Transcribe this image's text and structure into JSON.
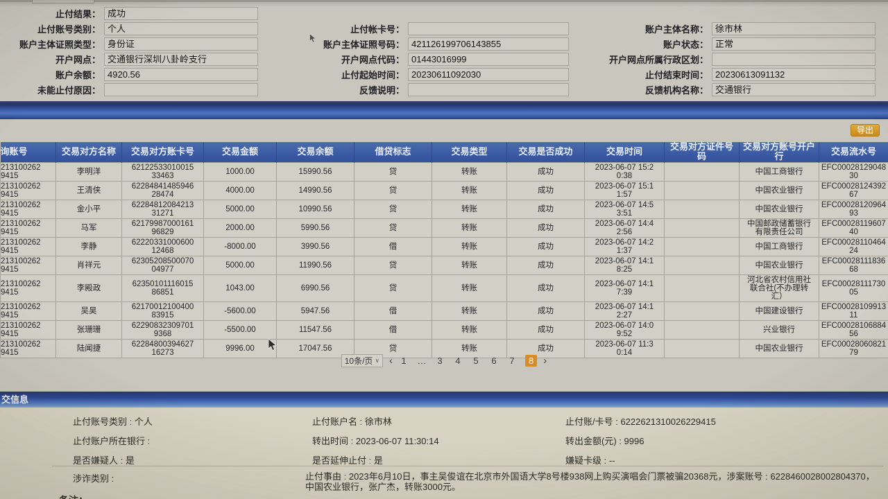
{
  "colors": {
    "accent_orange": "#d78c28",
    "header_blue": "#3b5ba5",
    "bar_blue_dark": "#27346f",
    "panel_bg": "#d7d2c2"
  },
  "form": {
    "stop_result": {
      "label": "止付结果：",
      "value": "成功"
    },
    "stop_acct_type": {
      "label": "止付账号类别：",
      "value": "个人"
    },
    "stop_card_no": {
      "label": "止付帐卡号：",
      "value": ""
    },
    "subject_name": {
      "label": "账户主体名称：",
      "value": "徐市林"
    },
    "cert_type": {
      "label": "账户主体证照类型：",
      "value": "身份证"
    },
    "cert_no": {
      "label": "账户主体证照号码：",
      "value": "421126199706143855"
    },
    "acct_status": {
      "label": "账户状态：",
      "value": "正常"
    },
    "branch": {
      "label": "开户网点：",
      "value": "交通银行深圳八卦岭支行"
    },
    "branch_code": {
      "label": "开户网点代码：",
      "value": "01443016999"
    },
    "branch_region": {
      "label": "开户网点所属行政区划：",
      "value": ""
    },
    "balance": {
      "label": "账户余额：",
      "value": "4920.56"
    },
    "start_time": {
      "label": "止付起始时间：",
      "value": "20230611092030"
    },
    "end_time": {
      "label": "止付结束时间：",
      "value": "20230613091132"
    },
    "fail_reason": {
      "label": "未能止付原因：",
      "value": ""
    },
    "feedback_note": {
      "label": "反馈说明：",
      "value": ""
    },
    "feedback_org": {
      "label": "反馈机构名称：",
      "value": "交通银行"
    }
  },
  "toolbar": {
    "export_label": "导出"
  },
  "table": {
    "headers": [
      "询账号",
      "交易对方名称",
      "交易对方账卡号",
      "交易金额",
      "交易余额",
      "借贷标志",
      "交易类型",
      "交易是否成功",
      "交易时间",
      "交易对方证件号码",
      "交易对方账号开户\n行",
      "交易流水号"
    ],
    "rows": [
      {
        "account": "213100262\n9415",
        "name": "李明洋",
        "card": "62122533010015\n33463",
        "amount": "1000.00",
        "balance": "15990.56",
        "flag": "贷",
        "type": "转账",
        "success": "成功",
        "time": "2023-06-07 15:2\n0:38",
        "cert": "",
        "bank": "中国工商银行",
        "serial": "EFC00028129048\n30"
      },
      {
        "account": "213100262\n9415",
        "name": "王清侠",
        "card": "62284841485946\n28474",
        "amount": "4000.00",
        "balance": "14990.56",
        "flag": "贷",
        "type": "转账",
        "success": "成功",
        "time": "2023-06-07 15:1\n1:57",
        "cert": "",
        "bank": "中国农业银行",
        "serial": "EFC00028124392\n67"
      },
      {
        "account": "213100262\n9415",
        "name": "金小平",
        "card": "62284812084213\n31271",
        "amount": "5000.00",
        "balance": "10990.56",
        "flag": "贷",
        "type": "转账",
        "success": "成功",
        "time": "2023-06-07 14:5\n3:51",
        "cert": "",
        "bank": "中国农业银行",
        "serial": "EFC00028120964\n93"
      },
      {
        "account": "213100262\n9415",
        "name": "马军",
        "card": "62179987000161\n96829",
        "amount": "2000.00",
        "balance": "5990.56",
        "flag": "贷",
        "type": "转账",
        "success": "成功",
        "time": "2023-06-07 14:4\n2:56",
        "cert": "",
        "bank": "中国邮政储蓄银行\n有限责任公司",
        "serial": "EFC00028119607\n40"
      },
      {
        "account": "213100262\n9415",
        "name": "李静",
        "card": "62220331000600\n12468",
        "amount": "-8000.00",
        "balance": "3990.56",
        "flag": "借",
        "type": "转账",
        "success": "成功",
        "time": "2023-06-07 14:2\n1:37",
        "cert": "",
        "bank": "中国工商银行",
        "serial": "EFC00028110464\n24"
      },
      {
        "account": "213100262\n9415",
        "name": "肖祥元",
        "card": "62305208500070\n04977",
        "amount": "5000.00",
        "balance": "11990.56",
        "flag": "贷",
        "type": "转账",
        "success": "成功",
        "time": "2023-06-07 14:1\n8:25",
        "cert": "",
        "bank": "中国农业银行",
        "serial": "EFC00028111836\n68"
      },
      {
        "account": "213100262\n9415",
        "name": "李殿政",
        "card": "62350101116015\n86851",
        "amount": "1043.00",
        "balance": "6990.56",
        "flag": "贷",
        "type": "转账",
        "success": "成功",
        "time": "2023-06-07 14:1\n7:39",
        "cert": "",
        "bank": "河北省农村信用社\n联合社(不办理转\n汇）",
        "serial": "EFC00028111730\n05"
      },
      {
        "account": "213100262\n9415",
        "name": "吴昊",
        "card": "62170012100400\n83915",
        "amount": "-5600.00",
        "balance": "5947.56",
        "flag": "借",
        "type": "转账",
        "success": "成功",
        "time": "2023-06-07 14:1\n2:27",
        "cert": "",
        "bank": "中国建设银行",
        "serial": "EFC00028109913\n11"
      },
      {
        "account": "213100262\n9415",
        "name": "张珊珊",
        "card": "62290832309701\n9368",
        "amount": "-5500.00",
        "balance": "11547.56",
        "flag": "借",
        "type": "转账",
        "success": "成功",
        "time": "2023-06-07 14:0\n9:52",
        "cert": "",
        "bank": "兴业银行",
        "serial": "EFC00028106884\n56"
      },
      {
        "account": "213100262\n9415",
        "name": "陆闻捷",
        "card": "62284800394627\n16273",
        "amount": "9996.00",
        "balance": "17047.56",
        "flag": "贷",
        "type": "转账",
        "success": "成功",
        "time": "2023-06-07 11:3\n0:14",
        "cert": "",
        "bank": "中国农业银行",
        "serial": "EFC00028060821\n79"
      }
    ]
  },
  "pagination": {
    "page_size_label": "10条/页",
    "prev": "‹",
    "next": "›",
    "pages": [
      "1",
      "…",
      "3",
      "4",
      "5",
      "6",
      "7",
      "8"
    ],
    "active": "8"
  },
  "bottom": {
    "title": "交信息",
    "fields": {
      "stop_acct_type": {
        "label": "止付账号类别 : ",
        "value": "个人"
      },
      "stop_acct_name": {
        "label": "止付账户名 : ",
        "value": "徐市林"
      },
      "stop_card_no": {
        "label": "止付账/卡号 : ",
        "value": "6222621310026229415"
      },
      "stop_bank": {
        "label": "止付账户所在银行 : ",
        "value": ""
      },
      "transfer_time": {
        "label": "转出时间 : ",
        "value": "2023-06-07 11:30:14"
      },
      "transfer_amount": {
        "label": "转出金额(元) : ",
        "value": "9996"
      },
      "is_suspect": {
        "label": "是否嫌疑人 : ",
        "value": "是"
      },
      "is_extended": {
        "label": "是否延伸止付 : ",
        "value": "是"
      },
      "suspect_level": {
        "label": "嫌疑卡级 : ",
        "value": "--"
      },
      "fraud_category": {
        "label": "涉诈类别 : ",
        "value": ""
      },
      "stop_reason": {
        "label": "止付事由 : ",
        "value": "止付事由 : 2023年6月10日，事主吴俊谊在北京市外国语大学8号楼938网上购买演唱会门票被骗20368元，涉案账号 : 6228460028002804370，中国农业银行，张广杰，转账3000元。"
      }
    },
    "remark_label": "备注："
  }
}
